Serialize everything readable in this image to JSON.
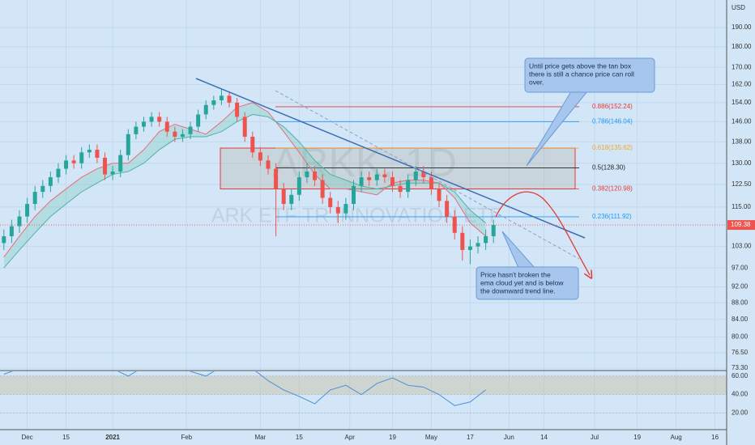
{
  "chart_data": {
    "type": "candlestick",
    "title": "ARKK, 1D",
    "subtitle": "ARK ETF TR INNOVATION ETF",
    "currency": "USD",
    "up_color": "#26a69a",
    "down_color": "#ef5350",
    "log_scale": true,
    "x": [
      -6,
      -4,
      -2,
      0,
      2,
      4,
      6,
      8,
      10,
      12,
      14,
      16,
      18,
      20,
      22,
      24,
      26,
      28,
      30,
      32,
      34,
      36,
      38,
      40,
      42,
      44,
      46,
      48,
      50,
      52,
      54,
      56,
      58,
      60,
      62,
      64,
      66,
      68,
      70,
      72,
      74,
      76,
      78,
      80,
      82,
      84,
      86,
      88,
      90,
      92,
      94,
      96,
      98,
      100,
      102,
      104,
      106,
      108,
      110,
      112,
      114,
      116,
      118,
      120
    ],
    "open": [
      104,
      106,
      109,
      112,
      116,
      120,
      122,
      125,
      128,
      131,
      130,
      134,
      135,
      132,
      126,
      127,
      133,
      141,
      144,
      146,
      148,
      146,
      142,
      140,
      141,
      144,
      149,
      153,
      155,
      157,
      154,
      148,
      140,
      134,
      131,
      128,
      121,
      116,
      119,
      125,
      127,
      124,
      118,
      115,
      113,
      116,
      122,
      125,
      124,
      126,
      125,
      122,
      120,
      124,
      127,
      125,
      121,
      117,
      112,
      107,
      102,
      103,
      104,
      106
    ],
    "high": [
      108,
      111,
      114,
      118,
      122,
      124,
      127,
      130,
      133,
      133,
      136,
      137,
      137,
      134,
      129,
      135,
      143,
      146,
      148,
      150,
      150,
      148,
      144,
      143,
      146,
      151,
      155,
      157,
      160,
      159,
      156,
      150,
      142,
      136,
      133,
      130,
      123,
      121,
      127,
      130,
      129,
      126,
      120,
      117,
      118,
      124,
      127,
      127,
      128,
      128,
      127,
      124,
      126,
      129,
      129,
      127,
      123,
      119,
      114,
      109,
      105,
      106,
      108,
      111
    ],
    "low": [
      102,
      104,
      107,
      110,
      114,
      118,
      120,
      123,
      126,
      128,
      128,
      132,
      130,
      124,
      124,
      125,
      131,
      139,
      142,
      144,
      144,
      140,
      138,
      138,
      139,
      142,
      147,
      151,
      153,
      152,
      146,
      138,
      132,
      129,
      126,
      106,
      114,
      114,
      117,
      123,
      122,
      116,
      113,
      110,
      111,
      114,
      120,
      122,
      122,
      123,
      120,
      118,
      118,
      122,
      123,
      119,
      115,
      110,
      105,
      99,
      98,
      101,
      102,
      104
    ],
    "close": [
      106,
      109,
      112,
      116,
      120,
      122,
      125,
      128,
      131,
      130,
      134,
      135,
      132,
      126,
      127,
      133,
      141,
      144,
      146,
      148,
      146,
      142,
      140,
      141,
      144,
      149,
      153,
      155,
      157,
      154,
      148,
      140,
      134,
      131,
      128,
      121,
      116,
      119,
      125,
      127,
      124,
      118,
      115,
      113,
      116,
      122,
      125,
      124,
      126,
      125,
      122,
      120,
      124,
      127,
      125,
      121,
      117,
      112,
      107,
      102,
      103,
      104,
      106,
      109.38
    ],
    "last_price": 109.38,
    "ema_x": [
      -6,
      -2,
      2,
      6,
      10,
      14,
      18,
      22,
      26,
      30,
      34,
      38,
      42,
      46,
      50,
      54,
      58,
      62,
      66,
      70,
      74,
      78,
      82,
      86,
      90,
      94,
      98,
      102,
      106,
      110,
      114,
      118
    ],
    "ema_fast": [
      100,
      106,
      112,
      117,
      121,
      125,
      128,
      130,
      130,
      135,
      142,
      145,
      143,
      141,
      146,
      152,
      154,
      150,
      142,
      134,
      126,
      121,
      121,
      120,
      119,
      123,
      124,
      124,
      123,
      118,
      110,
      106
    ],
    "ema_slow": [
      97,
      102,
      107,
      112,
      116,
      120,
      123,
      126,
      127,
      130,
      135,
      139,
      140,
      140,
      142,
      146,
      149,
      148,
      144,
      138,
      131,
      126,
      124,
      122,
      121,
      122,
      123,
      123,
      123,
      120,
      114,
      110
    ],
    "xlim": [
      -7,
      180
    ],
    "ylim": [
      72.8,
      205.2
    ],
    "xticks": [
      {
        "value": 0,
        "label": "Dec"
      },
      {
        "value": 10,
        "label": "15"
      },
      {
        "value": 22,
        "label": "2021"
      },
      {
        "value": 41,
        "label": "Feb"
      },
      {
        "value": 60,
        "label": "Mar"
      },
      {
        "value": 70,
        "label": "15"
      },
      {
        "value": 83,
        "label": "Apr"
      },
      {
        "value": 94,
        "label": "19"
      },
      {
        "value": 104,
        "label": "May"
      },
      {
        "value": 114,
        "label": "17"
      },
      {
        "value": 124,
        "label": "Jun"
      },
      {
        "value": 133,
        "label": "14"
      },
      {
        "value": 146,
        "label": "Jul"
      },
      {
        "value": 157,
        "label": "19"
      },
      {
        "value": 167,
        "label": "Aug"
      },
      {
        "value": 177,
        "label": "16"
      }
    ],
    "yticks": [
      {
        "value": 190,
        "label": "190.00"
      },
      {
        "value": 180,
        "label": "180.00"
      },
      {
        "value": 170,
        "label": "170.00"
      },
      {
        "value": 162,
        "label": "162.00"
      },
      {
        "value": 154,
        "label": "154.00"
      },
      {
        "value": 146,
        "label": "146.00"
      },
      {
        "value": 138,
        "label": "138.00"
      },
      {
        "value": 130,
        "label": "130.00"
      },
      {
        "value": 122.5,
        "label": "122.50"
      },
      {
        "value": 115,
        "label": "115.00"
      },
      {
        "value": 103,
        "label": "103.00"
      },
      {
        "value": 97,
        "label": "97.00"
      },
      {
        "value": 92,
        "label": "92.00"
      },
      {
        "value": 88,
        "label": "88.00"
      },
      {
        "value": 84,
        "label": "84.00"
      },
      {
        "value": 80,
        "label": "80.00"
      },
      {
        "value": 76.5,
        "label": "76.50"
      },
      {
        "value": 73.3,
        "label": "73.30"
      }
    ],
    "fib_levels": [
      {
        "label": "0.886(152.24)",
        "price": 152.24,
        "color": "#e53935"
      },
      {
        "label": "0.786(146.04)",
        "price": 146.04,
        "color": "#2196f3"
      },
      {
        "label": "0.618(135.62)",
        "price": 135.62,
        "color": "#f5a623"
      },
      {
        "label": "0.5(128.30)",
        "price": 128.3,
        "color": "#222222"
      },
      {
        "label": "0.382(120.98)",
        "price": 120.98,
        "color": "#e53935"
      },
      {
        "label": "0.236(111.92)",
        "price": 111.92,
        "color": "#2196f3"
      }
    ],
    "rsi": {
      "values": [
        62,
        68,
        72,
        75,
        72,
        70,
        73,
        68,
        60,
        70,
        80,
        78,
        65,
        60,
        70,
        75,
        68,
        55,
        45,
        38,
        30,
        45,
        50,
        40,
        52,
        58,
        50,
        48,
        40,
        28,
        32,
        45
      ],
      "ylim": [
        10.8,
        73.8
      ],
      "yticks": [
        {
          "value": 60,
          "label": "60.00"
        },
        {
          "value": 40,
          "label": "40.00"
        },
        {
          "value": 20,
          "label": "20.00"
        }
      ],
      "band": [
        40,
        60
      ]
    },
    "annotations": [
      [
        "Until price gets above the tan box",
        "there is still a chance price can roll",
        "over."
      ],
      [
        "Price hasn't broken the",
        "ema cloud yet and is below",
        "the downward trend line."
      ]
    ]
  }
}
